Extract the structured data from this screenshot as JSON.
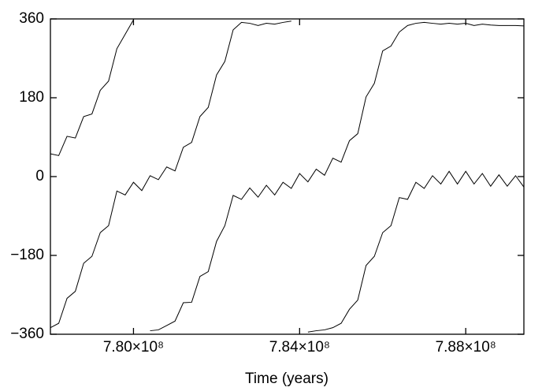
{
  "chart_data": {
    "type": "line",
    "xlabel": "Time (years)",
    "x": [
      778000000,
      778200000,
      778400000,
      778600000,
      778800000,
      779000000,
      779200000,
      779400000,
      779600000,
      779800000,
      780000000,
      780200000,
      780400000,
      780600000,
      780800000,
      781000000,
      781200000,
      781400000,
      781600000,
      781800000,
      782000000,
      782200000,
      782400000,
      782600000,
      782800000,
      783000000,
      783200000,
      783400000,
      783600000,
      783800000,
      784000000,
      784200000,
      784400000,
      784600000,
      784800000,
      785000000,
      785200000,
      785400000,
      785600000,
      785800000,
      786000000,
      786200000,
      786400000,
      786600000,
      786800000,
      787000000,
      787200000,
      787400000,
      787600000,
      787800000,
      788000000,
      788200000,
      788400000,
      788600000,
      788800000,
      789000000,
      789200000,
      789400000
    ],
    "series": [
      {
        "color": "#000000",
        "values": [
          52,
          48,
          92,
          88,
          137,
          143,
          197,
          218,
          292,
          325,
          358,
          null,
          -352,
          -350,
          -340,
          -330,
          -288,
          -287,
          -228,
          -217,
          -148,
          -112,
          -43,
          -52,
          -26,
          -47,
          -20,
          -42,
          -13,
          -27,
          7,
          -12,
          17,
          3,
          42,
          33,
          82,
          98,
          182,
          213,
          287,
          298,
          330,
          345,
          350,
          352,
          350,
          348,
          350,
          348,
          350,
          345,
          348,
          346,
          345,
          345,
          345,
          344
        ]
      },
      {
        "color": "#000000",
        "values": [
          -345,
          -335,
          -278,
          -262,
          -198,
          -182,
          -128,
          -112,
          -33,
          -42,
          -13,
          -32,
          2,
          -7,
          22,
          13,
          67,
          78,
          137,
          158,
          232,
          263,
          335,
          352,
          350,
          345,
          350,
          348,
          352,
          355,
          null,
          -355,
          -352,
          -350,
          -345,
          -335,
          -303,
          -282,
          -203,
          -182,
          -128,
          -112,
          -48,
          -52,
          -13,
          -27,
          2,
          -17,
          12,
          -17,
          12,
          -17,
          7,
          -22,
          4,
          -22,
          2,
          -24
        ]
      }
    ],
    "xlim": [
      778000000,
      789400000
    ],
    "xticks": [
      {
        "value": 780000000,
        "label": "7.80×10⁸"
      },
      {
        "value": 784000000,
        "label": "7.84×10⁸"
      },
      {
        "value": 788000000,
        "label": "7.88×10⁸"
      }
    ],
    "ylim": [
      -360,
      360
    ],
    "yticks": [
      {
        "value": -360,
        "label": "−360"
      },
      {
        "value": -180,
        "label": "−180"
      },
      0,
      180,
      360
    ]
  }
}
